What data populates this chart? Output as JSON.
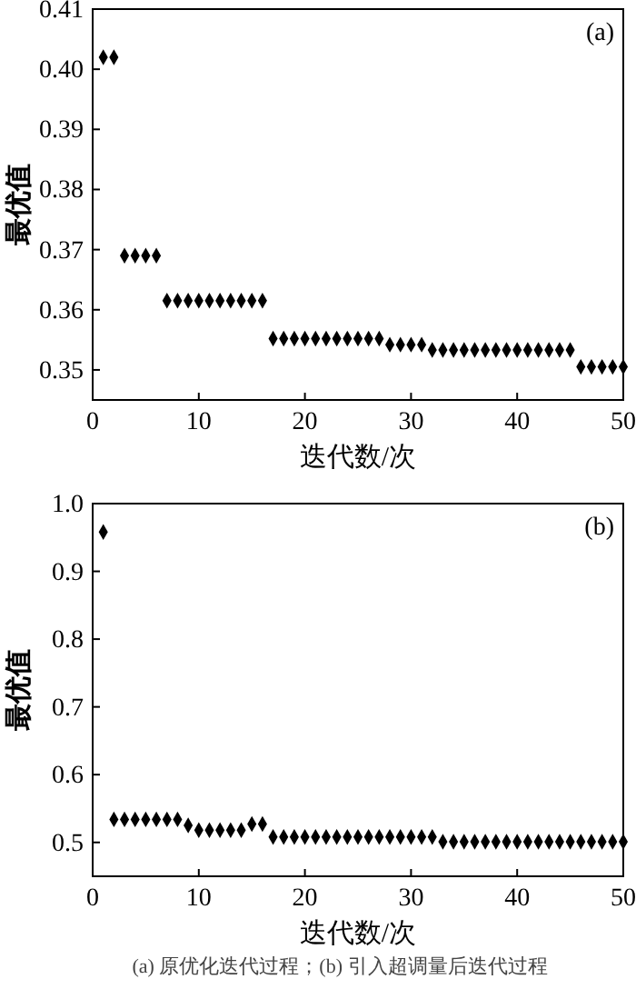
{
  "chart_data": [
    {
      "type": "scatter",
      "xlabel": "迭代数/次",
      "ylabel": "最优值",
      "annotations": [
        "(a)"
      ],
      "marker": "diamond",
      "x": [
        1,
        2,
        3,
        4,
        5,
        6,
        7,
        8,
        9,
        10,
        11,
        12,
        13,
        14,
        15,
        16,
        17,
        18,
        19,
        20,
        21,
        22,
        23,
        24,
        25,
        26,
        27,
        28,
        29,
        30,
        31,
        32,
        33,
        34,
        35,
        36,
        37,
        38,
        39,
        40,
        41,
        42,
        43,
        44,
        45,
        46,
        47,
        48,
        49,
        50
      ],
      "series": [
        {
          "color": "#000000",
          "values": [
            0.402,
            0.402,
            0.369,
            0.369,
            0.369,
            0.369,
            0.3615,
            0.3615,
            0.3615,
            0.3615,
            0.3615,
            0.3615,
            0.3615,
            0.3615,
            0.3615,
            0.3615,
            0.3552,
            0.3552,
            0.3552,
            0.3552,
            0.3552,
            0.3552,
            0.3552,
            0.3552,
            0.3552,
            0.3552,
            0.3552,
            0.3542,
            0.3542,
            0.3542,
            0.3542,
            0.3533,
            0.3533,
            0.3533,
            0.3533,
            0.3533,
            0.3533,
            0.3533,
            0.3533,
            0.3533,
            0.3533,
            0.3533,
            0.3533,
            0.3533,
            0.3533,
            0.3505,
            0.3505,
            0.3505,
            0.3505,
            0.3505
          ]
        }
      ],
      "xlim": [
        0,
        50
      ],
      "xticks": [
        0,
        10,
        20,
        30,
        40,
        50
      ],
      "ylim": [
        0.345,
        0.41
      ],
      "yticks": [
        0.35,
        0.36,
        0.37,
        0.38,
        0.39,
        {
          "value": 0.4,
          "label": "0.40"
        },
        0.41
      ]
    },
    {
      "type": "scatter",
      "xlabel": "迭代数/次",
      "ylabel": "最优值",
      "annotations": [
        "(b)",
        "(a) 原优化迭代过程；(b) 引入超调量后迭代过程"
      ],
      "marker": "diamond",
      "x": [
        1,
        2,
        3,
        4,
        5,
        6,
        7,
        8,
        9,
        10,
        11,
        12,
        13,
        14,
        15,
        16,
        17,
        18,
        19,
        20,
        21,
        22,
        23,
        24,
        25,
        26,
        27,
        28,
        29,
        30,
        31,
        32,
        33,
        34,
        35,
        36,
        37,
        38,
        39,
        40,
        41,
        42,
        43,
        44,
        45,
        46,
        47,
        48,
        49,
        50
      ],
      "series": [
        {
          "color": "#000000",
          "values": [
            0.958,
            0.534,
            0.534,
            0.534,
            0.534,
            0.534,
            0.534,
            0.534,
            0.525,
            0.518,
            0.518,
            0.518,
            0.518,
            0.518,
            0.527,
            0.527,
            0.508,
            0.508,
            0.508,
            0.508,
            0.508,
            0.508,
            0.508,
            0.508,
            0.508,
            0.508,
            0.508,
            0.508,
            0.508,
            0.508,
            0.508,
            0.508,
            0.501,
            0.501,
            0.501,
            0.501,
            0.501,
            0.501,
            0.501,
            0.501,
            0.501,
            0.501,
            0.501,
            0.501,
            0.501,
            0.501,
            0.501,
            0.501,
            0.501,
            0.501
          ]
        }
      ],
      "xlim": [
        0,
        50
      ],
      "xticks": [
        0,
        10,
        20,
        30,
        40,
        50
      ],
      "ylim": [
        0.45,
        1.0
      ],
      "yticks": [
        0.5,
        0.6,
        0.7,
        0.8,
        0.9,
        {
          "value": 1.0,
          "label": "1.0"
        }
      ]
    }
  ]
}
